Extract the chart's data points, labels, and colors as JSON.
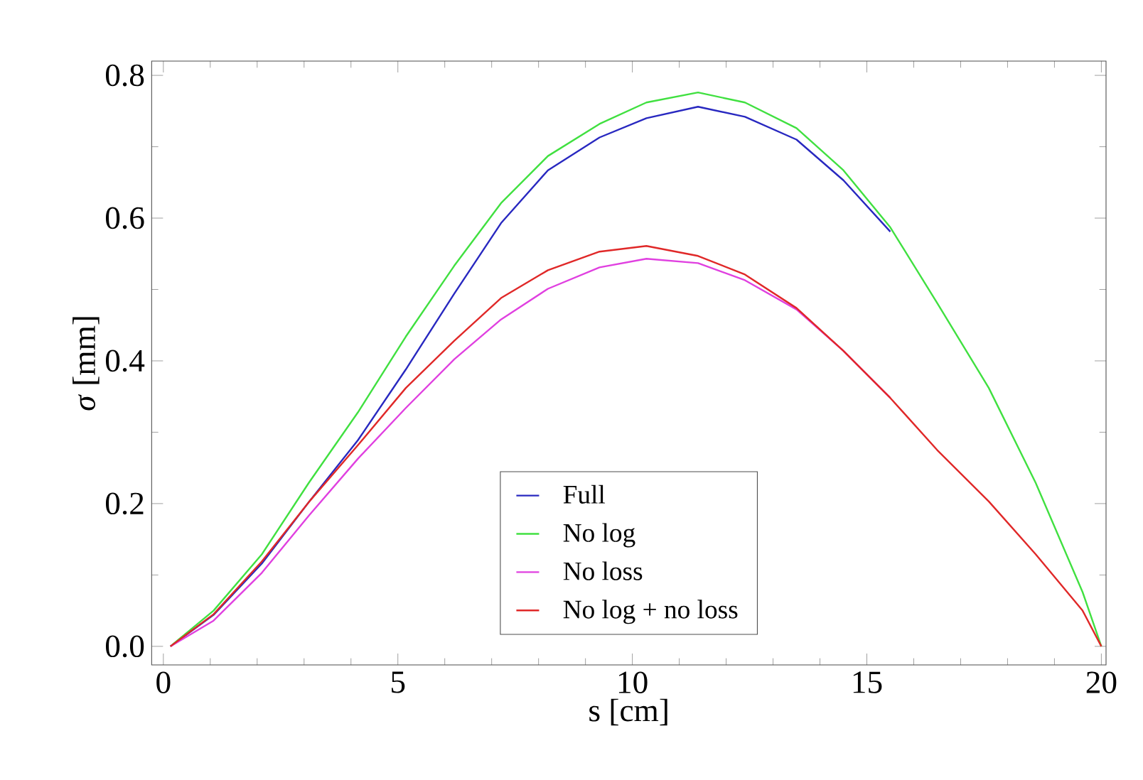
{
  "chart_data": {
    "type": "line",
    "xlabel": "s [cm]",
    "ylabel": "*σ* [mm]",
    "x": [
      0.15,
      1.07,
      2.1,
      3.1,
      4.15,
      5.17,
      6.2,
      7.2,
      8.2,
      9.3,
      10.3,
      11.4,
      12.4,
      13.5,
      14.5,
      15.5,
      16.5,
      17.6,
      18.6,
      19.6,
      20
    ],
    "series": [
      {
        "name": "Full",
        "color": "#2828c0",
        "values": [
          0,
          0.044,
          0.116,
          0.202,
          0.289,
          0.388,
          0.494,
          0.593,
          0.667,
          0.713,
          0.74,
          0.756,
          0.742,
          0.71,
          0.653,
          0.581,
          null,
          null,
          null,
          null,
          null
        ]
      },
      {
        "name": "No log",
        "color": "#40e040",
        "values": [
          0,
          0.05,
          0.129,
          0.229,
          0.328,
          0.434,
          0.533,
          0.621,
          0.687,
          0.732,
          0.762,
          0.776,
          0.762,
          0.726,
          0.667,
          0.587,
          0.481,
          0.362,
          0.229,
          0.076,
          0
        ]
      },
      {
        "name": "No loss",
        "color": "#e040e0",
        "values": [
          0,
          0.036,
          0.103,
          0.183,
          0.263,
          0.334,
          0.402,
          0.458,
          0.501,
          0.531,
          0.543,
          0.537,
          0.513,
          0.472,
          0.414,
          0.348,
          null,
          null,
          null,
          null,
          null
        ]
      },
      {
        "name": "No log + no loss",
        "color": "#e02828",
        "values": [
          0,
          0.045,
          0.119,
          0.202,
          0.282,
          0.362,
          0.428,
          0.488,
          0.527,
          0.553,
          0.561,
          0.547,
          0.521,
          0.474,
          0.414,
          0.348,
          0.275,
          0.203,
          0.129,
          0.05,
          0
        ]
      }
    ],
    "xlim": [
      -0.25,
      20.1
    ],
    "ylim": [
      -0.026,
      0.82
    ],
    "xticks": [
      0,
      5,
      10,
      15,
      20
    ],
    "yticks": [
      {
        "value": 0,
        "label": "0.0"
      },
      {
        "value": 0.2,
        "label": "0.2"
      },
      {
        "value": 0.4,
        "label": "0.4"
      },
      {
        "value": 0.6,
        "label": "0.6"
      },
      {
        "value": 0.8,
        "label": "0.8"
      }
    ],
    "legend": "bottom",
    "grid": false,
    "marker": "none",
    "line_style": "solid"
  }
}
